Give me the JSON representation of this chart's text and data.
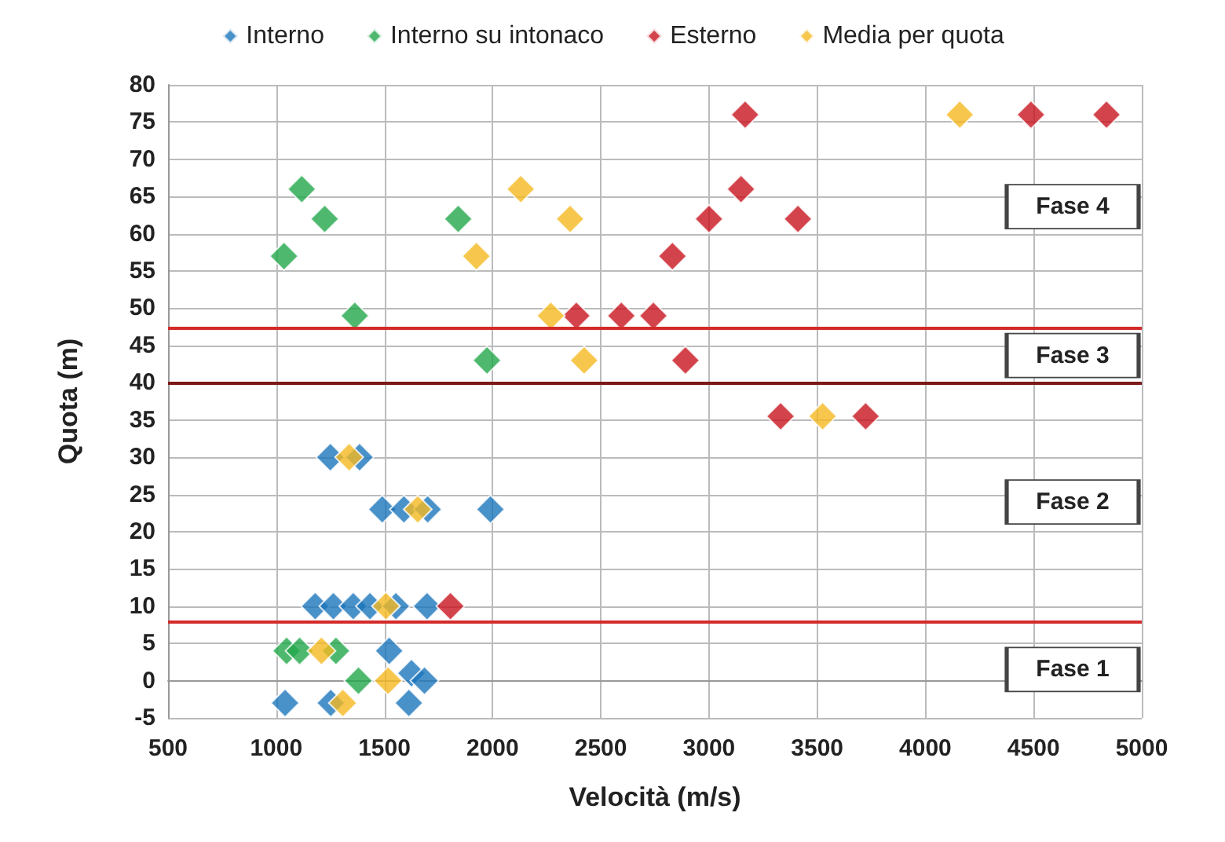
{
  "chart_data": {
    "type": "scatter",
    "xlabel": "Velocità (m/s)",
    "ylabel": "Quota (m)",
    "xlim": [
      500,
      5000
    ],
    "xticks": [
      500,
      1000,
      1500,
      2000,
      2500,
      3000,
      3500,
      4000,
      4500,
      5000
    ],
    "ylim": [
      -5,
      80
    ],
    "yticks": [
      -5,
      0,
      5,
      10,
      15,
      20,
      25,
      30,
      35,
      40,
      45,
      50,
      55,
      60,
      65,
      70,
      75,
      80
    ],
    "grid": true,
    "legend": "top",
    "marker": "diamond",
    "series": [
      {
        "name": "Interno",
        "color": "#1b75bc",
        "x": [
          1250,
          1385,
          1490,
          1590,
          1700,
          1990,
          1180,
          1264,
          1356,
          1433,
          1553,
          1697,
          null,
          1522,
          1625,
          1685,
          1041,
          1252,
          1613
        ],
        "values": [
          30,
          30,
          23,
          23,
          23,
          23,
          10,
          10,
          10,
          10,
          10,
          10,
          null,
          4,
          1,
          0,
          -3,
          -3,
          -3
        ]
      },
      {
        "name": "Interno su intonaco",
        "color": "#22a84a",
        "x": [
          1118,
          1224,
          1036,
          1363,
          1841,
          1974,
          1048,
          1108,
          1276,
          1380
        ],
        "values": [
          66,
          62,
          57,
          49,
          62,
          43,
          4,
          4,
          4,
          0
        ]
      },
      {
        "name": "Esterno",
        "color": "#c8141e",
        "x": [
          3167,
          4488,
          4837,
          3148,
          3000,
          3411,
          2831,
          2387,
          2595,
          2743,
          2891,
          3331,
          3724,
          1805
        ],
        "values": [
          76,
          76,
          76,
          66,
          62,
          62,
          57,
          49,
          49,
          49,
          43,
          35.5,
          35.5,
          10
        ]
      },
      {
        "name": "Media per quota",
        "color": "#f5b921",
        "x": [
          4159,
          2130,
          2358,
          1925,
          2269,
          2423,
          3525,
          1337,
          1654,
          1507,
          1209,
          1517,
          1308
        ],
        "values": [
          76,
          66,
          62,
          57,
          49,
          43,
          35.5,
          30,
          23,
          10,
          4,
          0,
          -3
        ]
      }
    ],
    "ref_lines": [
      {
        "axis": "y",
        "value": 47.3,
        "color": "#d42a2a"
      },
      {
        "axis": "y",
        "value": 40,
        "color": "#7a1a1a"
      },
      {
        "axis": "y",
        "value": 8,
        "color": "#d42a2a"
      }
    ],
    "annotations": [
      "Fase 4",
      "Fase 3",
      "Fase 2",
      "Fase 1"
    ]
  }
}
